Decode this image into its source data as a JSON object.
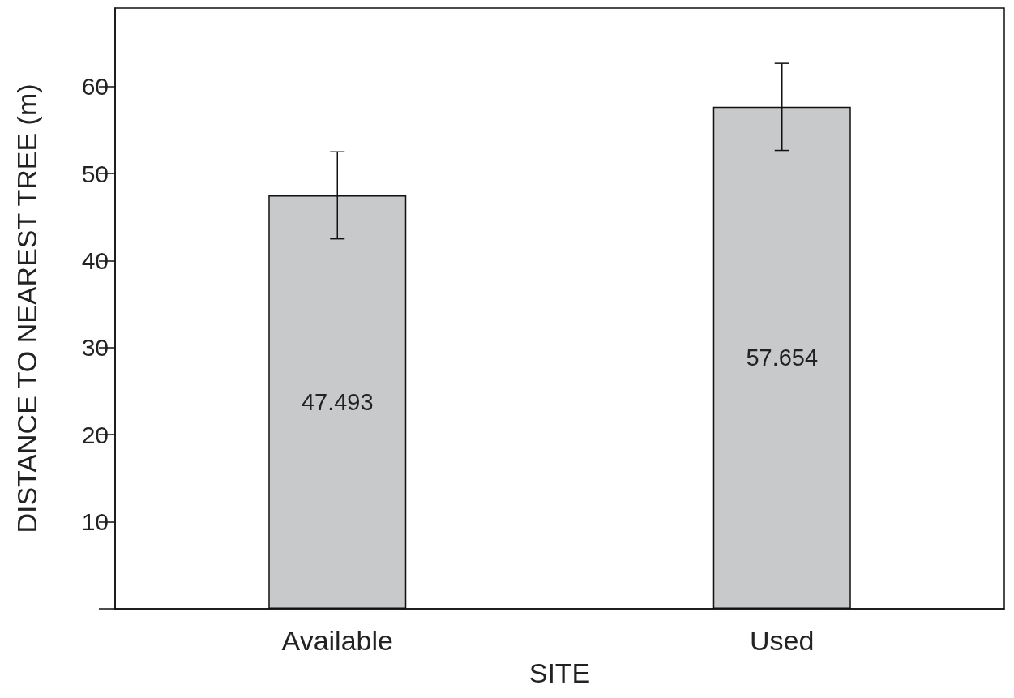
{
  "chart_data": {
    "type": "bar",
    "xlabel": "SITE",
    "ylabel": "DISTANCE TO NEAREST TREE (m)",
    "categories": [
      "Available",
      "Used"
    ],
    "values": [
      47.493,
      57.654
    ],
    "errors": [
      5,
      5
    ],
    "color": "#c8c9cb",
    "data_labels": true,
    "ylim": [
      0,
      69
    ],
    "yticks": [
      {
        "value": 0,
        "label": null
      },
      10,
      20,
      30,
      40,
      50,
      60
    ],
    "grid": false
  }
}
